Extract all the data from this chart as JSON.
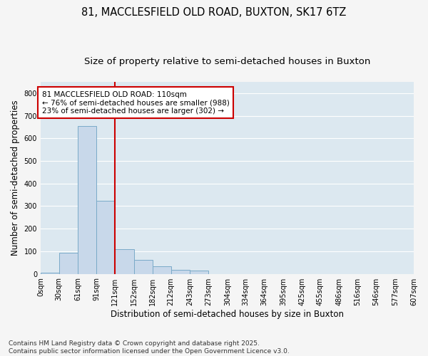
{
  "title_line1": "81, MACCLESFIELD OLD ROAD, BUXTON, SK17 6TZ",
  "title_line2": "Size of property relative to semi-detached houses in Buxton",
  "xlabel": "Distribution of semi-detached houses by size in Buxton",
  "ylabel": "Number of semi-detached properties",
  "footnote_line1": "Contains HM Land Registry data © Crown copyright and database right 2025.",
  "footnote_line2": "Contains public sector information licensed under the Open Government Licence v3.0.",
  "annotation_line1": "81 MACCLESFIELD OLD ROAD: 110sqm",
  "annotation_line2": "← 76% of semi-detached houses are smaller (988)",
  "annotation_line3": "23% of semi-detached houses are larger (302) →",
  "property_size": 110,
  "bins": [
    0,
    30,
    61,
    91,
    121,
    152,
    182,
    212,
    243,
    273,
    304,
    334,
    364,
    395,
    425,
    455,
    486,
    516,
    546,
    577,
    607
  ],
  "bin_labels": [
    "0sqm",
    "30sqm",
    "61sqm",
    "91sqm",
    "121sqm",
    "152sqm",
    "182sqm",
    "212sqm",
    "243sqm",
    "273sqm",
    "304sqm",
    "334sqm",
    "364sqm",
    "395sqm",
    "425sqm",
    "455sqm",
    "486sqm",
    "516sqm",
    "546sqm",
    "577sqm",
    "607sqm"
  ],
  "counts": [
    5,
    93,
    655,
    323,
    108,
    63,
    33,
    18,
    13,
    0,
    0,
    0,
    0,
    0,
    0,
    0,
    0,
    0,
    0,
    0
  ],
  "bar_face_color": "#c8d8ea",
  "bar_edge_color": "#7aaac8",
  "vline_color": "#cc0000",
  "vline_x": 91,
  "ylim": [
    0,
    850
  ],
  "yticks": [
    0,
    100,
    200,
    300,
    400,
    500,
    600,
    700,
    800
  ],
  "plot_bg_color": "#dce8f0",
  "grid_color": "#ffffff",
  "fig_bg_color": "#f5f5f5",
  "title_fontsize": 10.5,
  "subtitle_fontsize": 9.5,
  "axis_label_fontsize": 8.5,
  "tick_fontsize": 7,
  "annotation_fontsize": 7.5,
  "footnote_fontsize": 6.5
}
